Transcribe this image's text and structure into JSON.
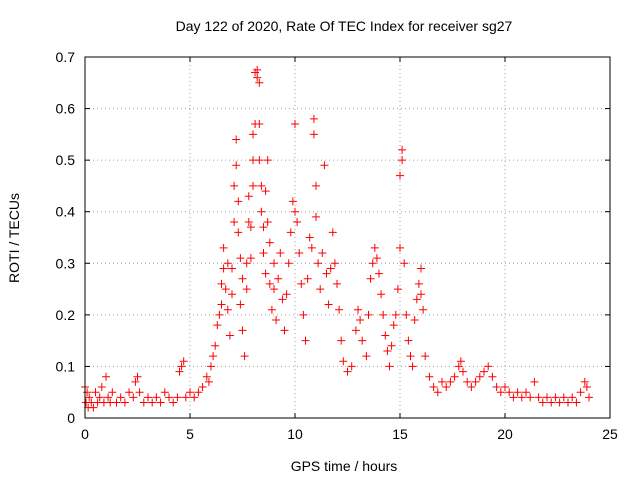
{
  "chart_data": {
    "type": "scatter",
    "title": "Day 122 of 2020, Rate Of TEC Index for receiver sg27",
    "xlabel": "GPS time / hours",
    "ylabel": "ROTI / TECUs",
    "xlim": [
      0,
      25
    ],
    "ylim": [
      0,
      0.7
    ],
    "xticks": [
      "0",
      "5",
      "10",
      "15",
      "20",
      "25"
    ],
    "yticks": [
      "0",
      "0.1",
      "0.2",
      "0.3",
      "0.4",
      "0.5",
      "0.6",
      "0.7"
    ],
    "grid": true,
    "marker": "+",
    "color": "#ff0000",
    "series": [
      {
        "points": [
          [
            0.0,
            0.06
          ],
          [
            0.05,
            0.03
          ],
          [
            0.1,
            0.05
          ],
          [
            0.15,
            0.02
          ],
          [
            0.2,
            0.04
          ],
          [
            0.3,
            0.03
          ],
          [
            0.4,
            0.02
          ],
          [
            0.5,
            0.05
          ],
          [
            0.6,
            0.03
          ],
          [
            0.7,
            0.04
          ],
          [
            0.8,
            0.06
          ],
          [
            0.9,
            0.03
          ],
          [
            1.0,
            0.08
          ],
          [
            1.1,
            0.04
          ],
          [
            1.2,
            0.03
          ],
          [
            1.3,
            0.05
          ],
          [
            1.5,
            0.03
          ],
          [
            1.7,
            0.04
          ],
          [
            1.9,
            0.03
          ],
          [
            2.1,
            0.05
          ],
          [
            2.3,
            0.04
          ],
          [
            2.4,
            0.07
          ],
          [
            2.5,
            0.08
          ],
          [
            2.6,
            0.05
          ],
          [
            2.8,
            0.03
          ],
          [
            3.0,
            0.04
          ],
          [
            3.2,
            0.03
          ],
          [
            3.4,
            0.04
          ],
          [
            3.6,
            0.03
          ],
          [
            3.8,
            0.05
          ],
          [
            4.0,
            0.04
          ],
          [
            4.2,
            0.03
          ],
          [
            4.4,
            0.04
          ],
          [
            4.5,
            0.09
          ],
          [
            4.6,
            0.1
          ],
          [
            4.7,
            0.11
          ],
          [
            4.8,
            0.04
          ],
          [
            5.0,
            0.05
          ],
          [
            5.2,
            0.04
          ],
          [
            5.4,
            0.05
          ],
          [
            5.6,
            0.06
          ],
          [
            5.8,
            0.08
          ],
          [
            5.9,
            0.07
          ],
          [
            6.0,
            0.1
          ],
          [
            6.1,
            0.12
          ],
          [
            6.2,
            0.14
          ],
          [
            6.3,
            0.18
          ],
          [
            6.4,
            0.2
          ],
          [
            6.5,
            0.22
          ],
          [
            6.5,
            0.26
          ],
          [
            6.6,
            0.33
          ],
          [
            6.6,
            0.29
          ],
          [
            6.7,
            0.25
          ],
          [
            6.8,
            0.3
          ],
          [
            6.8,
            0.21
          ],
          [
            6.9,
            0.16
          ],
          [
            7.0,
            0.29
          ],
          [
            7.0,
            0.24
          ],
          [
            7.1,
            0.38
          ],
          [
            7.1,
            0.45
          ],
          [
            7.2,
            0.54
          ],
          [
            7.2,
            0.49
          ],
          [
            7.3,
            0.42
          ],
          [
            7.3,
            0.36
          ],
          [
            7.4,
            0.31
          ],
          [
            7.4,
            0.22
          ],
          [
            7.5,
            0.17
          ],
          [
            7.5,
            0.27
          ],
          [
            7.6,
            0.12
          ],
          [
            7.7,
            0.3
          ],
          [
            7.7,
            0.25
          ],
          [
            7.8,
            0.38
          ],
          [
            7.8,
            0.43
          ],
          [
            7.9,
            0.37
          ],
          [
            7.9,
            0.31
          ],
          [
            8.0,
            0.45
          ],
          [
            8.0,
            0.5
          ],
          [
            8.0,
            0.55
          ],
          [
            8.1,
            0.57
          ],
          [
            8.1,
            0.67
          ],
          [
            8.2,
            0.675
          ],
          [
            8.2,
            0.66
          ],
          [
            8.3,
            0.65
          ],
          [
            8.3,
            0.57
          ],
          [
            8.3,
            0.5
          ],
          [
            8.4,
            0.45
          ],
          [
            8.4,
            0.4
          ],
          [
            8.5,
            0.37
          ],
          [
            8.5,
            0.32
          ],
          [
            8.6,
            0.28
          ],
          [
            8.6,
            0.44
          ],
          [
            8.7,
            0.5
          ],
          [
            8.7,
            0.38
          ],
          [
            8.8,
            0.34
          ],
          [
            8.8,
            0.26
          ],
          [
            8.9,
            0.21
          ],
          [
            9.0,
            0.3
          ],
          [
            9.0,
            0.25
          ],
          [
            9.1,
            0.19
          ],
          [
            9.2,
            0.27
          ],
          [
            9.3,
            0.32
          ],
          [
            9.4,
            0.23
          ],
          [
            9.5,
            0.17
          ],
          [
            9.6,
            0.24
          ],
          [
            9.7,
            0.3
          ],
          [
            9.8,
            0.36
          ],
          [
            9.9,
            0.42
          ],
          [
            10.0,
            0.57
          ],
          [
            10.0,
            0.4
          ],
          [
            10.1,
            0.38
          ],
          [
            10.2,
            0.32
          ],
          [
            10.3,
            0.26
          ],
          [
            10.4,
            0.2
          ],
          [
            10.5,
            0.15
          ],
          [
            10.6,
            0.27
          ],
          [
            10.7,
            0.35
          ],
          [
            10.8,
            0.33
          ],
          [
            10.9,
            0.58
          ],
          [
            10.9,
            0.55
          ],
          [
            11.0,
            0.45
          ],
          [
            11.0,
            0.39
          ],
          [
            11.1,
            0.3
          ],
          [
            11.2,
            0.25
          ],
          [
            11.3,
            0.32
          ],
          [
            11.4,
            0.49
          ],
          [
            11.5,
            0.28
          ],
          [
            11.6,
            0.22
          ],
          [
            11.7,
            0.29
          ],
          [
            11.8,
            0.36
          ],
          [
            11.9,
            0.3
          ],
          [
            12.0,
            0.26
          ],
          [
            12.1,
            0.21
          ],
          [
            12.2,
            0.15
          ],
          [
            12.3,
            0.11
          ],
          [
            12.5,
            0.09
          ],
          [
            12.7,
            0.1
          ],
          [
            12.9,
            0.17
          ],
          [
            13.0,
            0.21
          ],
          [
            13.1,
            0.19
          ],
          [
            13.2,
            0.15
          ],
          [
            13.4,
            0.12
          ],
          [
            13.5,
            0.2
          ],
          [
            13.6,
            0.27
          ],
          [
            13.7,
            0.3
          ],
          [
            13.8,
            0.33
          ],
          [
            13.9,
            0.31
          ],
          [
            14.0,
            0.28
          ],
          [
            14.1,
            0.24
          ],
          [
            14.2,
            0.2
          ],
          [
            14.3,
            0.16
          ],
          [
            14.4,
            0.13
          ],
          [
            14.5,
            0.1
          ],
          [
            14.6,
            0.14
          ],
          [
            14.7,
            0.18
          ],
          [
            14.8,
            0.2
          ],
          [
            14.9,
            0.25
          ],
          [
            15.0,
            0.33
          ],
          [
            15.0,
            0.47
          ],
          [
            15.1,
            0.52
          ],
          [
            15.1,
            0.5
          ],
          [
            15.2,
            0.3
          ],
          [
            15.3,
            0.2
          ],
          [
            15.4,
            0.15
          ],
          [
            15.5,
            0.12
          ],
          [
            15.6,
            0.1
          ],
          [
            15.7,
            0.19
          ],
          [
            15.8,
            0.23
          ],
          [
            15.9,
            0.26
          ],
          [
            16.0,
            0.29
          ],
          [
            16.0,
            0.24
          ],
          [
            16.1,
            0.21
          ],
          [
            16.2,
            0.12
          ],
          [
            16.4,
            0.08
          ],
          [
            16.6,
            0.06
          ],
          [
            16.8,
            0.05
          ],
          [
            17.0,
            0.07
          ],
          [
            17.2,
            0.06
          ],
          [
            17.4,
            0.07
          ],
          [
            17.6,
            0.08
          ],
          [
            17.8,
            0.1
          ],
          [
            17.9,
            0.11
          ],
          [
            18.0,
            0.09
          ],
          [
            18.2,
            0.07
          ],
          [
            18.4,
            0.06
          ],
          [
            18.6,
            0.07
          ],
          [
            18.8,
            0.08
          ],
          [
            19.0,
            0.09
          ],
          [
            19.2,
            0.1
          ],
          [
            19.4,
            0.08
          ],
          [
            19.6,
            0.06
          ],
          [
            19.8,
            0.05
          ],
          [
            20.0,
            0.06
          ],
          [
            20.2,
            0.05
          ],
          [
            20.4,
            0.04
          ],
          [
            20.6,
            0.05
          ],
          [
            20.8,
            0.04
          ],
          [
            21.0,
            0.05
          ],
          [
            21.2,
            0.04
          ],
          [
            21.4,
            0.07
          ],
          [
            21.6,
            0.04
          ],
          [
            21.8,
            0.03
          ],
          [
            22.0,
            0.04
          ],
          [
            22.2,
            0.03
          ],
          [
            22.4,
            0.04
          ],
          [
            22.6,
            0.03
          ],
          [
            22.8,
            0.04
          ],
          [
            23.0,
            0.03
          ],
          [
            23.2,
            0.04
          ],
          [
            23.4,
            0.03
          ],
          [
            23.6,
            0.05
          ],
          [
            23.8,
            0.07
          ],
          [
            23.9,
            0.06
          ],
          [
            24.0,
            0.04
          ]
        ]
      }
    ]
  }
}
